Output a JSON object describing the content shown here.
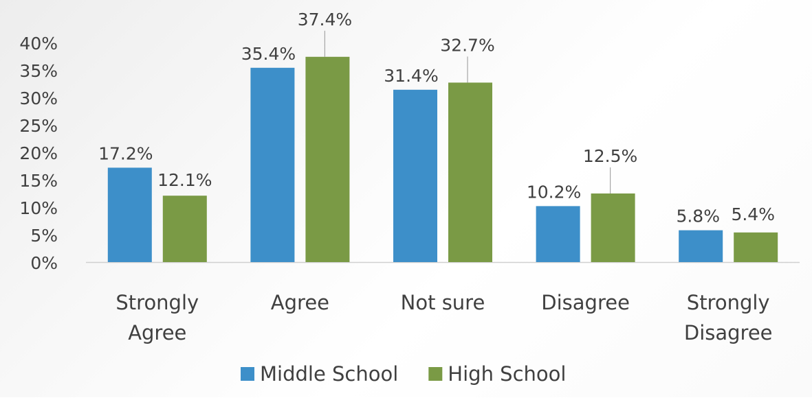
{
  "chart_data": {
    "type": "bar",
    "categories": [
      [
        "Strongly",
        "Agree"
      ],
      [
        "Agree"
      ],
      [
        "Not sure"
      ],
      [
        "Disagree"
      ],
      [
        "Strongly",
        "Disagree"
      ]
    ],
    "series": [
      {
        "name": "Middle School",
        "color": "#3d8fc9",
        "values": [
          17.2,
          35.4,
          31.4,
          10.2,
          5.8
        ],
        "labels": [
          "17.2%",
          "35.4%",
          "31.4%",
          "10.2%",
          "5.8%"
        ]
      },
      {
        "name": "High School",
        "color": "#7a9a45",
        "values": [
          12.1,
          37.4,
          32.7,
          12.5,
          5.4
        ],
        "labels": [
          "12.1%",
          "37.4%",
          "32.7%",
          "12.5%",
          "5.4%"
        ]
      }
    ],
    "yticks": [
      "0%",
      "5%",
      "10%",
      "15%",
      "20%",
      "25%",
      "30%",
      "35%",
      "40%"
    ],
    "ylim": [
      0,
      40
    ],
    "legend_position": "bottom",
    "grid": false
  }
}
